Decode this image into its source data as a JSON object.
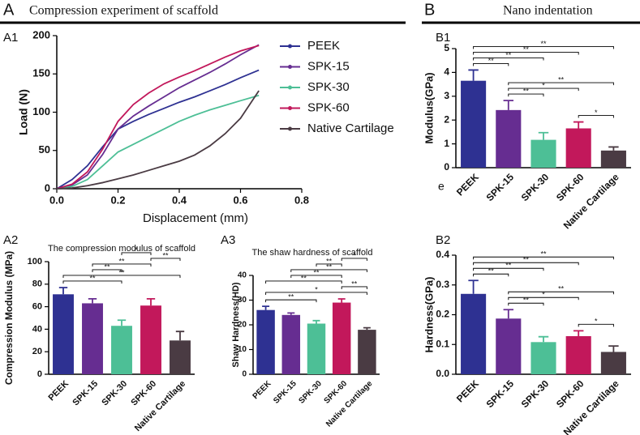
{
  "sections": [
    {
      "letter": "A",
      "title": "Compression experiment of scaffold"
    },
    {
      "letter": "B",
      "title": "Nano indentation"
    }
  ],
  "chart_data": [
    {
      "type": "line",
      "label": "A1",
      "x_label": "Displacement (mm)",
      "y_label": "Load (N)",
      "x": [
        0,
        0.05,
        0.1,
        0.15,
        0.2,
        0.25,
        0.3,
        0.35,
        0.4,
        0.45,
        0.5,
        0.55,
        0.6,
        0.66
      ],
      "series": [
        {
          "name": "PEEK",
          "color": "#2e3192",
          "values": [
            0,
            12,
            30,
            55,
            78,
            88,
            97,
            105,
            113,
            120,
            128,
            136,
            145,
            155
          ]
        },
        {
          "name": "SPK-15",
          "color": "#662d91",
          "values": [
            0,
            5,
            18,
            45,
            78,
            95,
            108,
            120,
            132,
            142,
            152,
            163,
            175,
            188
          ]
        },
        {
          "name": "SPK-30",
          "color": "#4dbf96",
          "values": [
            0,
            3,
            12,
            30,
            48,
            58,
            68,
            78,
            88,
            96,
            103,
            109,
            115,
            122
          ]
        },
        {
          "name": "SPK-60",
          "color": "#c2185b",
          "values": [
            0,
            6,
            22,
            52,
            88,
            110,
            125,
            137,
            146,
            154,
            163,
            172,
            180,
            187
          ]
        },
        {
          "name": "Native Cartilage",
          "color": "#4a3b43",
          "values": [
            0,
            1,
            4,
            8,
            13,
            18,
            24,
            30,
            36,
            44,
            56,
            72,
            92,
            128
          ]
        }
      ],
      "xlim": [
        0,
        0.8
      ],
      "xticks": [
        {
          "value": 0,
          "label": "0.0"
        },
        0.2,
        0.4,
        0.6,
        0.8
      ],
      "ylim": [
        0,
        200
      ],
      "yticks": [
        0,
        50,
        100,
        150,
        200
      ],
      "legend": "right",
      "grid": false
    },
    {
      "type": "bar",
      "label": "A2",
      "title": "The compression modulus of scaffold",
      "y_label": "Compression Modulus (MPa)",
      "categories": [
        "PEEK",
        "SPK-15",
        "SPK-30",
        "SPK-60",
        "Native Cartilage"
      ],
      "values": [
        71,
        63,
        43,
        61,
        30
      ],
      "errors": [
        6,
        4,
        5,
        6,
        8
      ],
      "colors": [
        "#2e3192",
        "#662d91",
        "#4dbf96",
        "#c2185b",
        "#4a3b43"
      ],
      "ylim": [
        0,
        100
      ],
      "yticks": [
        0,
        20,
        40,
        60,
        80,
        100
      ],
      "grid": false,
      "brackets": [
        {
          "from": "SPK-30",
          "to": "SPK-60",
          "label": "*"
        },
        {
          "from": "SPK-60",
          "to": "Native Cartilage",
          "label": "**"
        },
        {
          "from": "SPK-15",
          "to": "SPK-60",
          "label": "**"
        },
        {
          "from": "SPK-15",
          "to": "SPK-30",
          "label": "**"
        },
        {
          "from": "PEEK",
          "to": "Native Cartilage",
          "label": "**"
        },
        {
          "from": "PEEK",
          "to": "SPK-30",
          "label": "**"
        }
      ]
    },
    {
      "type": "bar",
      "label": "A3",
      "title": "The shaw hardness of scaffold",
      "y_label": "Shaw Hardness(HD)",
      "categories": [
        "PEEK",
        "SPK-15",
        "SPK-30",
        "SPK-60",
        "Native Cartilage"
      ],
      "values": [
        26,
        24,
        20.5,
        29,
        18
      ],
      "errors": [
        1.5,
        0.8,
        1.2,
        1.5,
        0.8
      ],
      "colors": [
        "#2e3192",
        "#662d91",
        "#4dbf96",
        "#c2185b",
        "#4a3b43"
      ],
      "ylim": [
        0,
        40
      ],
      "yticks": [
        0,
        10,
        20,
        30,
        40
      ],
      "grid": false,
      "brackets": [
        {
          "from": "SPK-60",
          "to": "Native Cartilage",
          "label": "*"
        },
        {
          "from": "SPK-30",
          "to": "SPK-60",
          "label": "**"
        },
        {
          "from": "SPK-15",
          "to": "Native Cartilage",
          "label": "**"
        },
        {
          "from": "SPK-15",
          "to": "SPK-60",
          "label": "**"
        },
        {
          "from": "PEEK",
          "to": "SPK-60",
          "label": "**"
        },
        {
          "from": "SPK-60",
          "to": "Native Cartilage",
          "label": "**"
        },
        {
          "from": "PEEK",
          "to": "Native Cartilage",
          "label": "*"
        },
        {
          "from": "PEEK",
          "to": "SPK-30",
          "label": "**"
        }
      ]
    },
    {
      "type": "bar",
      "label": "B1",
      "y_label": "Modulus(GPa)",
      "annotation": "e",
      "categories": [
        "PEEK",
        "SPK-15",
        "SPK-30",
        "SPK-60",
        "Native Cartilage"
      ],
      "values": [
        3.65,
        2.42,
        1.17,
        1.65,
        0.72
      ],
      "errors": [
        0.45,
        0.4,
        0.3,
        0.27,
        0.15
      ],
      "colors": [
        "#2e3192",
        "#662d91",
        "#4dbf96",
        "#c2185b",
        "#4a3b43"
      ],
      "ylim": [
        0,
        5
      ],
      "yticks": [
        0,
        1,
        2,
        3,
        4,
        5
      ],
      "grid": false,
      "brackets": [
        {
          "from": "PEEK",
          "to": "Native Cartilage",
          "label": "**"
        },
        {
          "from": "PEEK",
          "to": "SPK-60",
          "label": "**"
        },
        {
          "from": "PEEK",
          "to": "SPK-30",
          "label": "**"
        },
        {
          "from": "PEEK",
          "to": "SPK-15",
          "label": "**"
        },
        {
          "from": "SPK-15",
          "to": "Native Cartilage",
          "label": "**"
        },
        {
          "from": "SPK-15",
          "to": "SPK-60",
          "label": "*"
        },
        {
          "from": "SPK-15",
          "to": "SPK-30",
          "label": "**"
        },
        {
          "from": "SPK-60",
          "to": "Native Cartilage",
          "label": "*"
        }
      ]
    },
    {
      "type": "bar",
      "label": "B2",
      "y_label": "Hardness(GPa)",
      "categories": [
        "PEEK",
        "SPK-15",
        "SPK-30",
        "SPK-60",
        "Native Cartilage"
      ],
      "values": [
        0.27,
        0.187,
        0.108,
        0.128,
        0.075
      ],
      "errors": [
        0.045,
        0.03,
        0.018,
        0.018,
        0.02
      ],
      "colors": [
        "#2e3192",
        "#662d91",
        "#4dbf96",
        "#c2185b",
        "#4a3b43"
      ],
      "ylim": [
        0,
        0.4
      ],
      "yticks": [
        {
          "value": 0,
          "label": "0.0"
        },
        0.1,
        0.2,
        0.3,
        0.4
      ],
      "grid": false,
      "brackets": [
        {
          "from": "PEEK",
          "to": "Native Cartilage",
          "label": "**"
        },
        {
          "from": "PEEK",
          "to": "SPK-60",
          "label": "**"
        },
        {
          "from": "PEEK",
          "to": "SPK-30",
          "label": "**"
        },
        {
          "from": "PEEK",
          "to": "SPK-15",
          "label": "**"
        },
        {
          "from": "SPK-15",
          "to": "Native Cartilage",
          "label": "**"
        },
        {
          "from": "SPK-15",
          "to": "SPK-60",
          "label": "*"
        },
        {
          "from": "SPK-15",
          "to": "SPK-30",
          "label": "**"
        },
        {
          "from": "SPK-60",
          "to": "Native Cartilage",
          "label": "*"
        }
      ]
    }
  ]
}
